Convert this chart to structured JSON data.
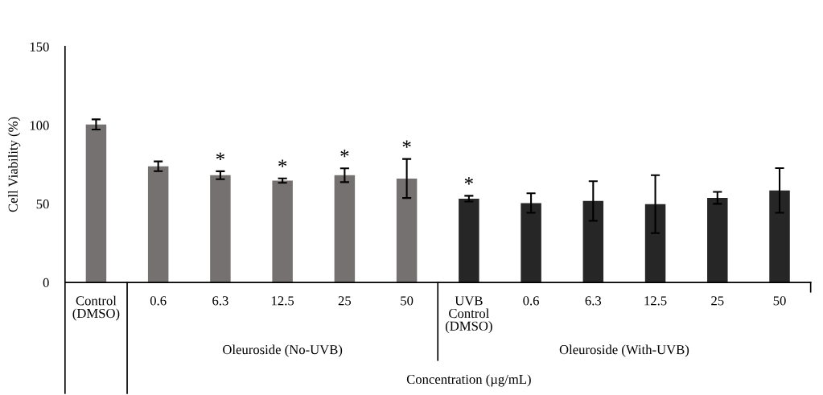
{
  "chart_data": {
    "type": "bar",
    "ylabel": "Cell Viability (%)",
    "xlabel": "Concentration (µg/mL)",
    "categories": [
      "Control\n(DMSO)",
      "0.6",
      "6.3",
      "12.5",
      "25",
      "50",
      "UVB\nControl\n(DMSO)",
      "0.6",
      "6.3",
      "12.5",
      "25",
      "50"
    ],
    "values": [
      100.5,
      73.9,
      68.2,
      64.8,
      68.2,
      66.1,
      53.3,
      50.5,
      51.8,
      49.8,
      53.8,
      58.5
    ],
    "errors": [
      3.2,
      3.1,
      2.5,
      1.4,
      4.4,
      12.4,
      1.8,
      6.2,
      12.6,
      18.4,
      3.8,
      14.2
    ],
    "value_labels": [
      null,
      null,
      "*",
      "*",
      "*",
      "*",
      "*",
      null,
      null,
      null,
      null,
      null
    ],
    "colors": [
      "#767171",
      "#767171",
      "#767171",
      "#767171",
      "#767171",
      "#767171",
      "#262626",
      "#262626",
      "#262626",
      "#262626",
      "#262626",
      "#262626"
    ],
    "annotations": [
      "Oleuroside (No-UVB)",
      "Oleuroside (With-UVB)"
    ],
    "ylim": [
      0,
      150
    ],
    "yticks": [
      0,
      50,
      100,
      150
    ],
    "grid": false,
    "legend": false
  }
}
